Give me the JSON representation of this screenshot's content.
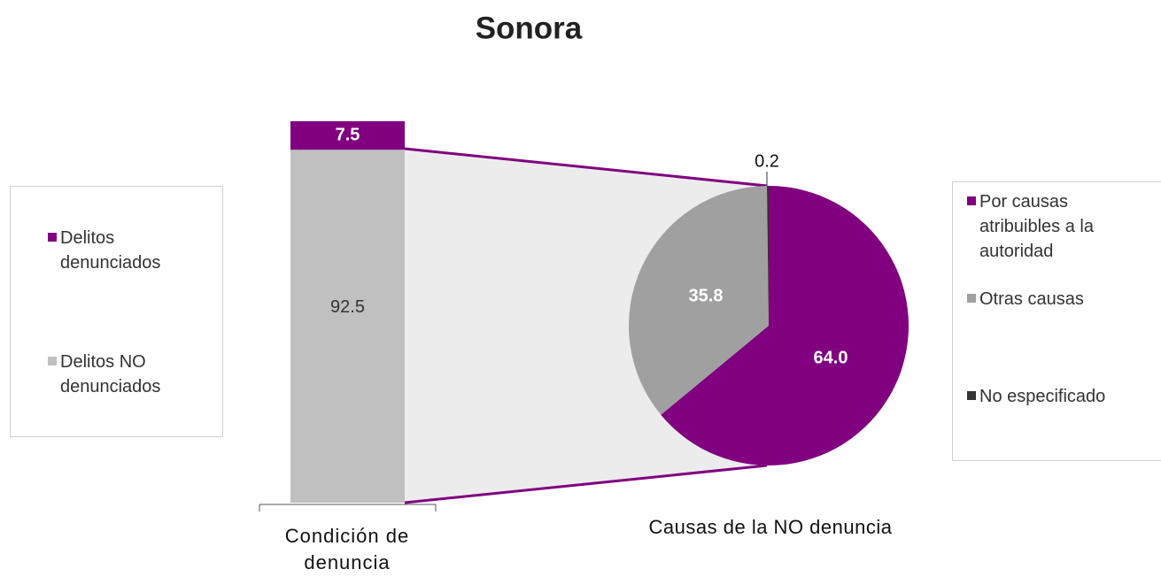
{
  "chart_data": [
    {
      "type": "bar",
      "title": "Sonora",
      "xlabel": "Condición de denuncia",
      "categories": [
        null
      ],
      "series": [
        {
          "name": "Delitos denunciados",
          "color": "#800080",
          "values": [
            7.5
          ]
        },
        {
          "name": "Delitos NO denunciados",
          "color": "#c0c0c0",
          "values": [
            92.5
          ]
        }
      ]
    },
    {
      "type": "pie",
      "xlabel": "Causas de la NO denuncia",
      "categories": [
        "Por causas atribuibles a la autoridad",
        "Otras causas",
        "No especificado"
      ],
      "values": [
        64.0,
        35.8,
        0.2
      ],
      "value_labels": [
        "64.0",
        "35.8",
        "0.2"
      ],
      "colors": [
        "#800080",
        "#a0a0a0",
        "#333333"
      ]
    }
  ]
}
